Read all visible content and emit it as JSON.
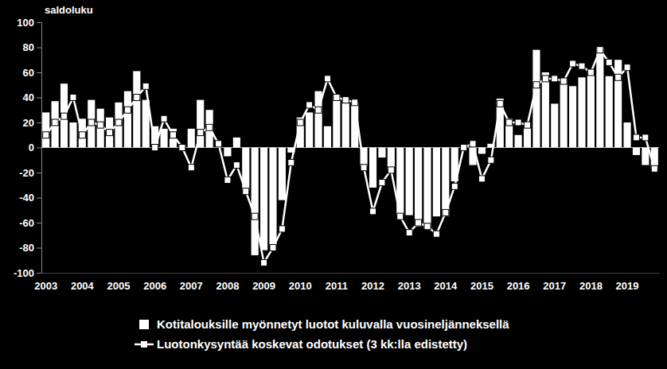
{
  "chart_data": {
    "type": "bar",
    "y_label": "saldoluku",
    "categories": [
      "2003",
      null,
      null,
      null,
      "2004",
      null,
      null,
      null,
      "2005",
      null,
      null,
      null,
      "2006",
      null,
      null,
      null,
      "2007",
      null,
      null,
      null,
      "2008",
      null,
      null,
      null,
      "2009",
      null,
      null,
      null,
      "2010",
      null,
      null,
      null,
      "2011",
      null,
      null,
      null,
      "2012",
      null,
      null,
      null,
      "2013",
      null,
      null,
      null,
      "2014",
      null,
      null,
      null,
      "2015",
      null,
      null,
      null,
      "2016",
      null,
      null,
      null,
      "2017",
      null,
      null,
      null,
      "2018",
      null,
      null,
      null,
      "2019",
      null,
      null,
      null
    ],
    "series": [
      {
        "name": "Kotitalouksille myönnetyt luotot kuluvalla vuosineljänneksellä",
        "type": "bar",
        "color": "#ffffff",
        "values": [
          28,
          37,
          51,
          20,
          23,
          38,
          31,
          24,
          36,
          45,
          61,
          38,
          17,
          15,
          15,
          2,
          15,
          38,
          30,
          2,
          -7,
          8,
          -34,
          -86,
          -82,
          -78,
          -42,
          -4,
          24,
          28,
          45,
          17,
          42,
          40,
          36,
          -15,
          -32,
          -8,
          -18,
          -54,
          -54,
          -63,
          -65,
          -55,
          -55,
          -27,
          0,
          -14,
          -5,
          3,
          39,
          23,
          10,
          20,
          78,
          60,
          35,
          55,
          49,
          56,
          61,
          80,
          57,
          70,
          20,
          -6,
          -14,
          -17
        ]
      },
      {
        "name": "Luotonkysyntää koskevat odotukset (3 kk:lla edistetty)",
        "type": "line",
        "color": "#ffffff",
        "marker": "square",
        "values": [
          10,
          20,
          25,
          40,
          10,
          20,
          18,
          12,
          20,
          30,
          40,
          49,
          0,
          23,
          10,
          0,
          -16,
          12,
          16,
          3,
          -26,
          -14,
          -35,
          -55,
          -92,
          -80,
          -65,
          -12,
          20,
          34,
          30,
          55,
          40,
          38,
          36,
          -16,
          -51,
          -28,
          -18,
          -55,
          -68,
          -60,
          -63,
          -69,
          -52,
          -31,
          0,
          3,
          -25,
          -10,
          35,
          20,
          20,
          18,
          50,
          55,
          55,
          53,
          67,
          65,
          60,
          78,
          68,
          56,
          64,
          8,
          8,
          -17
        ]
      }
    ],
    "ylim": [
      -100,
      100
    ],
    "yticks": [
      -100,
      -80,
      -60,
      -40,
      -20,
      0,
      20,
      40,
      60,
      80,
      100
    ],
    "legend": "bottom",
    "grid": false
  }
}
